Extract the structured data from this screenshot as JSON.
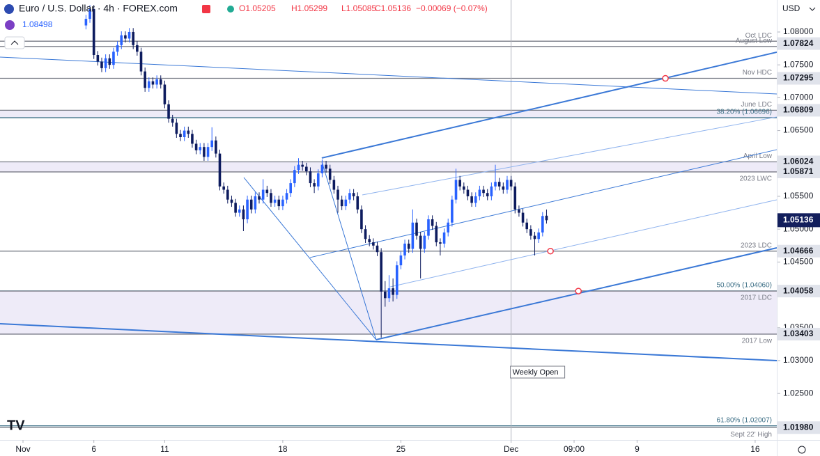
{
  "header": {
    "title": "Euro / U.S. Dollar · 4h · FOREX.com",
    "open": "O1.05205",
    "high": "H1.05299",
    "low": "L1.05085",
    "close": "C1.05136",
    "change": "−0.00069 (−0.07%)",
    "indicator": "1.08498",
    "currency": "USD"
  },
  "chart_data": {
    "type": "candlestick",
    "xlim": [
      -5.84,
      191.5
    ],
    "ylim": [
      1.01792,
      1.08487
    ],
    "xticks": [
      {
        "value": 0,
        "label": "Nov"
      },
      {
        "value": 18,
        "label": "6"
      },
      {
        "value": 36,
        "label": "11"
      },
      {
        "value": 66,
        "label": "18"
      },
      {
        "value": 96,
        "label": "25"
      },
      {
        "value": 124,
        "label": "Dec"
      },
      {
        "value": 140,
        "label": "09:00"
      },
      {
        "value": 156,
        "label": "9"
      },
      {
        "value": 186,
        "label": "16"
      }
    ],
    "yticks": [
      {
        "value": 1.08,
        "label": "1.08000"
      },
      {
        "value": 1.075,
        "label": "1.07500"
      },
      {
        "value": 1.07,
        "label": "1.07000"
      },
      {
        "value": 1.065,
        "label": "1.06500"
      },
      {
        "value": 1.055,
        "label": "1.05500"
      },
      {
        "value": 1.05,
        "label": "1.05000"
      },
      {
        "value": 1.045,
        "label": "1.04500"
      },
      {
        "value": 1.035,
        "label": "1.03500"
      },
      {
        "value": 1.03,
        "label": "1.03000"
      },
      {
        "value": 1.025,
        "label": "1.02500"
      }
    ],
    "up_color": "#2962ff",
    "down_color": "#0d1b5e",
    "x": [
      16,
      17,
      18,
      19,
      20,
      21,
      22,
      23,
      24,
      25,
      26,
      27,
      28,
      29,
      30,
      31,
      32,
      33,
      34,
      35,
      36,
      37,
      38,
      39,
      40,
      41,
      42,
      43,
      44,
      45,
      46,
      47,
      48,
      49,
      50,
      51,
      52,
      53,
      54,
      55,
      56,
      57,
      58,
      59,
      60,
      61,
      62,
      63,
      64,
      65,
      66,
      67,
      68,
      69,
      70,
      71,
      72,
      73,
      74,
      75,
      76,
      77,
      78,
      79,
      80,
      81,
      82,
      83,
      84,
      85,
      86,
      87,
      88,
      89,
      90,
      91,
      92,
      93,
      94,
      95,
      96,
      97,
      98,
      99,
      100,
      101,
      102,
      103,
      104,
      105,
      106,
      107,
      108,
      109,
      110,
      111,
      112,
      113,
      114,
      115,
      116,
      117,
      118,
      119,
      120,
      121,
      122,
      123,
      124,
      125,
      126,
      127,
      128,
      129,
      130,
      131,
      132,
      133
    ],
    "candles": [
      [
        1.081,
        1.0826,
        1.0804,
        1.082
      ],
      [
        1.082,
        1.0841,
        1.0814,
        1.0835
      ],
      [
        1.0835,
        1.0841,
        1.0759,
        1.0765
      ],
      [
        1.0765,
        1.0771,
        1.0749,
        1.0755
      ],
      [
        1.0755,
        1.0761,
        1.0739,
        1.0745
      ],
      [
        1.0745,
        1.0766,
        1.0739,
        1.076
      ],
      [
        1.076,
        1.0766,
        1.0744,
        1.075
      ],
      [
        1.075,
        1.0776,
        1.0744,
        1.077
      ],
      [
        1.077,
        1.0786,
        1.0764,
        1.078
      ],
      [
        1.078,
        1.0801,
        1.0774,
        1.0795
      ],
      [
        1.0795,
        1.0801,
        1.0784,
        1.079
      ],
      [
        1.079,
        1.0806,
        1.0784,
        1.08
      ],
      [
        1.08,
        1.0806,
        1.0774,
        1.078
      ],
      [
        1.078,
        1.0786,
        1.0764,
        1.077
      ],
      [
        1.077,
        1.0776,
        1.0734,
        1.074
      ],
      [
        1.074,
        1.0746,
        1.0709,
        1.0715
      ],
      [
        1.0715,
        1.0731,
        1.0709,
        1.0725
      ],
      [
        1.0725,
        1.0731,
        1.0714,
        1.072
      ],
      [
        1.072,
        1.0734,
        1.0714,
        1.0728
      ],
      [
        1.0728,
        1.0734,
        1.0714,
        1.072
      ],
      [
        1.072,
        1.0726,
        1.0684,
        1.069
      ],
      [
        1.069,
        1.0696,
        1.0662,
        1.0668
      ],
      [
        1.0668,
        1.0674,
        1.0656,
        1.0662
      ],
      [
        1.0662,
        1.0668,
        1.0639,
        1.0645
      ],
      [
        1.0645,
        1.0651,
        1.0634,
        1.064
      ],
      [
        1.064,
        1.0656,
        1.0634,
        1.065
      ],
      [
        1.065,
        1.0656,
        1.0639,
        1.0645
      ],
      [
        1.0645,
        1.0651,
        1.0624,
        1.063
      ],
      [
        1.063,
        1.0636,
        1.0614,
        1.062
      ],
      [
        1.062,
        1.0631,
        1.0614,
        1.0625
      ],
      [
        1.0625,
        1.0631,
        1.0604,
        1.061
      ],
      [
        1.061,
        1.0631,
        1.0604,
        1.0625
      ],
      [
        1.0625,
        1.0655,
        1.0619,
        1.0635
      ],
      [
        1.0635,
        1.0641,
        1.0609,
        1.0615
      ],
      [
        1.0615,
        1.0621,
        1.0559,
        1.0565
      ],
      [
        1.0565,
        1.0571,
        1.0554,
        1.056
      ],
      [
        1.056,
        1.0566,
        1.0539,
        1.0545
      ],
      [
        1.0545,
        1.0551,
        1.0534,
        1.054
      ],
      [
        1.054,
        1.0546,
        1.0519,
        1.0525
      ],
      [
        1.0525,
        1.0536,
        1.0519,
        1.053
      ],
      [
        1.053,
        1.0536,
        1.0497,
        1.0515
      ],
      [
        1.0515,
        1.0551,
        1.0509,
        1.0545
      ],
      [
        1.0545,
        1.0551,
        1.0524,
        1.053
      ],
      [
        1.053,
        1.0556,
        1.0524,
        1.055
      ],
      [
        1.055,
        1.0556,
        1.0539,
        1.0545
      ],
      [
        1.0545,
        1.0576,
        1.0539,
        1.056
      ],
      [
        1.056,
        1.0566,
        1.0549,
        1.0555
      ],
      [
        1.0555,
        1.0561,
        1.0534,
        1.054
      ],
      [
        1.054,
        1.0551,
        1.0534,
        1.0545
      ],
      [
        1.0545,
        1.0551,
        1.0529,
        1.0535
      ],
      [
        1.0535,
        1.0551,
        1.0529,
        1.0545
      ],
      [
        1.0545,
        1.0561,
        1.0539,
        1.0555
      ],
      [
        1.0555,
        1.0576,
        1.0549,
        1.057
      ],
      [
        1.057,
        1.0596,
        1.0564,
        1.059
      ],
      [
        1.059,
        1.0608,
        1.0584,
        1.0598
      ],
      [
        1.0598,
        1.0604,
        1.0589,
        1.0595
      ],
      [
        1.0595,
        1.0601,
        1.0582,
        1.0588
      ],
      [
        1.0588,
        1.0594,
        1.0564,
        1.057
      ],
      [
        1.057,
        1.0576,
        1.0555,
        1.0565
      ],
      [
        1.0565,
        1.0591,
        1.0559,
        1.0585
      ],
      [
        1.0585,
        1.0606,
        1.0579,
        1.0598
      ],
      [
        1.0598,
        1.0604,
        1.0586,
        1.0592
      ],
      [
        1.0592,
        1.0598,
        1.0569,
        1.0575
      ],
      [
        1.0575,
        1.0581,
        1.0554,
        1.056
      ],
      [
        1.056,
        1.0566,
        1.0525,
        1.0545
      ],
      [
        1.0545,
        1.0551,
        1.0529,
        1.0535
      ],
      [
        1.0535,
        1.0551,
        1.0529,
        1.0545
      ],
      [
        1.0545,
        1.0561,
        1.0539,
        1.0555
      ],
      [
        1.0555,
        1.0561,
        1.0544,
        1.055
      ],
      [
        1.055,
        1.0556,
        1.0524,
        1.053
      ],
      [
        1.053,
        1.0536,
        1.0494,
        1.05
      ],
      [
        1.05,
        1.0506,
        1.0479,
        1.0485
      ],
      [
        1.0485,
        1.0491,
        1.0474,
        1.048
      ],
      [
        1.048,
        1.0486,
        1.0469,
        1.0475
      ],
      [
        1.0475,
        1.0481,
        1.0459,
        1.0465
      ],
      [
        1.0465,
        1.0471,
        1.0335,
        1.0405
      ],
      [
        1.0405,
        1.0421,
        1.0382,
        1.0395
      ],
      [
        1.0395,
        1.043,
        1.0389,
        1.041
      ],
      [
        1.041,
        1.0425,
        1.039,
        1.04
      ],
      [
        1.04,
        1.0451,
        1.0394,
        1.0445
      ],
      [
        1.0445,
        1.0466,
        1.0439,
        1.046
      ],
      [
        1.046,
        1.0484,
        1.0454,
        1.0478
      ],
      [
        1.0478,
        1.0484,
        1.0464,
        1.047
      ],
      [
        1.047,
        1.053,
        1.0464,
        1.051
      ],
      [
        1.051,
        1.0516,
        1.0484,
        1.049
      ],
      [
        1.049,
        1.0496,
        1.0425,
        1.047
      ],
      [
        1.047,
        1.0496,
        1.0464,
        1.049
      ],
      [
        1.049,
        1.0521,
        1.0484,
        1.0515
      ],
      [
        1.0515,
        1.0521,
        1.0499,
        1.0505
      ],
      [
        1.0505,
        1.0511,
        1.0474,
        1.048
      ],
      [
        1.048,
        1.0486,
        1.046,
        1.0478
      ],
      [
        1.0478,
        1.0501,
        1.0472,
        1.0495
      ],
      [
        1.0495,
        1.0516,
        1.0489,
        1.051
      ],
      [
        1.051,
        1.0551,
        1.0504,
        1.0545
      ],
      [
        1.0545,
        1.0592,
        1.0539,
        1.0575
      ],
      [
        1.0575,
        1.0581,
        1.0559,
        1.0565
      ],
      [
        1.0565,
        1.0571,
        1.0554,
        1.056
      ],
      [
        1.056,
        1.0566,
        1.0544,
        1.055
      ],
      [
        1.055,
        1.0556,
        1.0534,
        1.054
      ],
      [
        1.054,
        1.0556,
        1.0534,
        1.055
      ],
      [
        1.055,
        1.0566,
        1.0544,
        1.056
      ],
      [
        1.056,
        1.0566,
        1.0549,
        1.0555
      ],
      [
        1.0555,
        1.0561,
        1.0544,
        1.055
      ],
      [
        1.055,
        1.0571,
        1.0544,
        1.0565
      ],
      [
        1.0565,
        1.0598,
        1.0559,
        1.0572
      ],
      [
        1.0572,
        1.0578,
        1.0559,
        1.0565
      ],
      [
        1.0565,
        1.0571,
        1.0554,
        1.056
      ],
      [
        1.056,
        1.0581,
        1.0554,
        1.0575
      ],
      [
        1.0575,
        1.0581,
        1.0559,
        1.0565
      ],
      [
        1.0565,
        1.0571,
        1.0524,
        1.053
      ],
      [
        1.053,
        1.0536,
        1.0519,
        1.0525
      ],
      [
        1.0525,
        1.0531,
        1.0504,
        1.051
      ],
      [
        1.051,
        1.0516,
        1.0494,
        1.05
      ],
      [
        1.05,
        1.0506,
        1.0484,
        1.049
      ],
      [
        1.049,
        1.0496,
        1.046,
        1.0485
      ],
      [
        1.0485,
        1.0501,
        1.0479,
        1.0495
      ],
      [
        1.0495,
        1.0526,
        1.0489,
        1.052
      ],
      [
        1.05205,
        1.05299,
        1.05085,
        1.05136
      ]
    ],
    "levels": [
      {
        "label": "Oct LDC",
        "value": 1.0786
      },
      {
        "label": "August Low",
        "value": 1.0778
      },
      {
        "label": "Nov HDC",
        "value": 1.07295
      },
      {
        "label": "June LDC",
        "value": 1.06809
      },
      {
        "label": "38.20% (1.06696)",
        "value": 1.06696
      },
      {
        "label": "April Low",
        "value": 1.06024
      },
      {
        "label": "2023 LWC",
        "value": 1.05871
      },
      {
        "label": "2023 LDC",
        "value": 1.04666
      },
      {
        "label": "50.00% (1.04060)",
        "value": 1.0406
      },
      {
        "label": "2017 LDC",
        "value": 1.04058
      },
      {
        "label": "2017 Low",
        "value": 1.03403
      },
      {
        "label": "61.80% (1.02007)",
        "value": 1.02007
      },
      {
        "label": "Sept 22' High",
        "value": 1.0198
      }
    ],
    "price_tags": [
      1.07824,
      1.07295,
      1.06809,
      1.06024,
      1.05871,
      1.04666,
      1.04058,
      1.03403,
      {
        "value": 1.0198,
        "label": "1.01980"
      }
    ],
    "last_price": 1.05136,
    "last_color": "#131f5c",
    "trendlines": [
      {
        "x": [
          -5.84,
          191.5
        ],
        "y": [
          1.07619,
          1.07057
        ],
        "color": "#3a78d6",
        "width": 1
      },
      {
        "x": [
          -5.84,
          191.5
        ],
        "y": [
          1.03561,
          1.03
        ],
        "color": "#3a78d6",
        "width": 2
      },
      {
        "x": [
          75.9,
          191.5
        ],
        "y": [
          1.06083,
          1.07693
        ],
        "color": "#3a78d6",
        "width": 2
      },
      {
        "x": [
          89.7,
          191.5
        ],
        "y": [
          1.03318,
          1.04716
        ],
        "color": "#3a78d6",
        "width": 2
      },
      {
        "x": [
          72.9,
          191.5
        ],
        "y": [
          1.04568,
          1.0621
        ],
        "color": "#3a78d6",
        "width": 1
      },
      {
        "x": [
          86.2,
          191.5
        ],
        "y": [
          1.05521,
          1.06708
        ],
        "color": "#8fb3ee",
        "width": 1
      },
      {
        "x": [
          93.3,
          191.5
        ],
        "y": [
          1.04123,
          1.05447
        ],
        "color": "#8fb3ee",
        "width": 1
      },
      {
        "x": [
          56.1,
          89.7,
          75.9
        ],
        "y": [
          1.05786,
          1.03318,
          1.0603
        ],
        "color": "#3a78d6",
        "width": 1
      }
    ],
    "markers": [
      {
        "x": 163.2,
        "y": 1.07295
      },
      {
        "x": 134.0,
        "y": 1.04666
      },
      {
        "x": 141.1,
        "y": 1.04058
      }
    ],
    "weekly_open": {
      "x": 124,
      "label": "Weekly Open"
    }
  }
}
